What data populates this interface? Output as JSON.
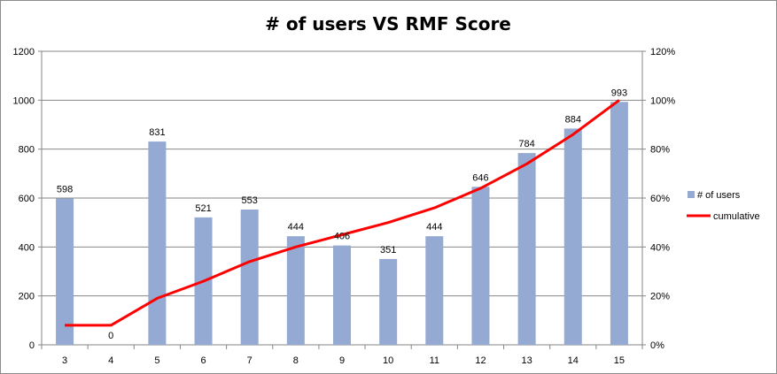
{
  "chart_data": {
    "type": "bar",
    "title": "# of users VS RMF Score",
    "xlabel": "",
    "ylabel": "",
    "categories": [
      "3",
      "4",
      "5",
      "6",
      "7",
      "8",
      "9",
      "10",
      "11",
      "12",
      "13",
      "14",
      "15"
    ],
    "ylim": [
      0,
      1200
    ],
    "y_ticks": [
      "0",
      "200",
      "400",
      "600",
      "800",
      "1000",
      "1200"
    ],
    "y2lim": [
      0,
      1.2
    ],
    "y2_ticks": [
      "0%",
      "20%",
      "40%",
      "60%",
      "80%",
      "100%",
      "120%"
    ],
    "grid": true,
    "legend_position": "right",
    "series": [
      {
        "name": "# of users",
        "type": "bar",
        "axis": "left",
        "color": "#95aad3",
        "values": [
          598,
          0,
          831,
          521,
          553,
          444,
          406,
          351,
          444,
          646,
          784,
          884,
          993
        ],
        "data_labels": [
          "598",
          "0",
          "831",
          "521",
          "553",
          "444",
          "406",
          "351",
          "444",
          "646",
          "784",
          "884",
          "993"
        ]
      },
      {
        "name": "cumulative",
        "type": "line",
        "axis": "right",
        "color": "#ff0000",
        "values": [
          0.08,
          0.08,
          0.19,
          0.26,
          0.34,
          0.4,
          0.45,
          0.5,
          0.56,
          0.64,
          0.74,
          0.86,
          1.0
        ]
      }
    ]
  }
}
